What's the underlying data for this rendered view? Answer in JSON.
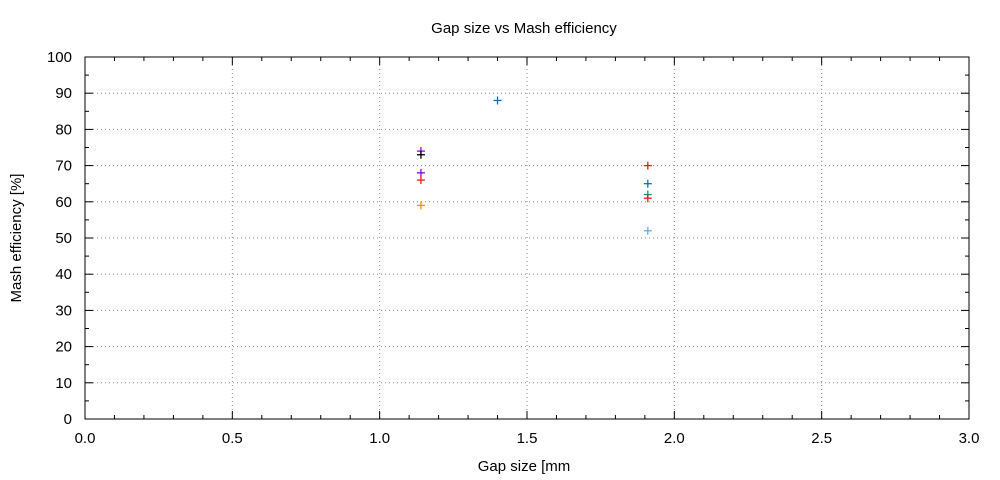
{
  "chart_data": {
    "type": "scatter",
    "title": "Gap size vs Mash efficiency",
    "xlabel": "Gap size [mm",
    "ylabel": "Mash efficiency [%]",
    "xlim": [
      0.0,
      3.0
    ],
    "ylim": [
      0,
      100
    ],
    "xticks": [
      "0.0",
      "0.5",
      "1.0",
      "1.5",
      "2.0",
      "2.5",
      "3.0"
    ],
    "yticks": [
      "0",
      "10",
      "20",
      "30",
      "40",
      "50",
      "60",
      "70",
      "80",
      "90",
      "100"
    ],
    "grid": true,
    "marker": "plus",
    "points": [
      {
        "x": 1.14,
        "y": 74,
        "color": "#9400d3"
      },
      {
        "x": 1.14,
        "y": 73,
        "color": "#000000"
      },
      {
        "x": 1.14,
        "y": 68,
        "color": "#9400d3"
      },
      {
        "x": 1.14,
        "y": 66,
        "color": "#e51e10"
      },
      {
        "x": 1.14,
        "y": 59,
        "color": "#ff8c00"
      },
      {
        "x": 1.4,
        "y": 88,
        "color": "#0072b2"
      },
      {
        "x": 1.91,
        "y": 70,
        "color": "#e51e10"
      },
      {
        "x": 1.91,
        "y": 65,
        "color": "#0072b2"
      },
      {
        "x": 1.91,
        "y": 62,
        "color": "#009e73"
      },
      {
        "x": 1.91,
        "y": 61,
        "color": "#e51e10"
      },
      {
        "x": 1.91,
        "y": 52,
        "color": "#56b4e9"
      }
    ]
  }
}
